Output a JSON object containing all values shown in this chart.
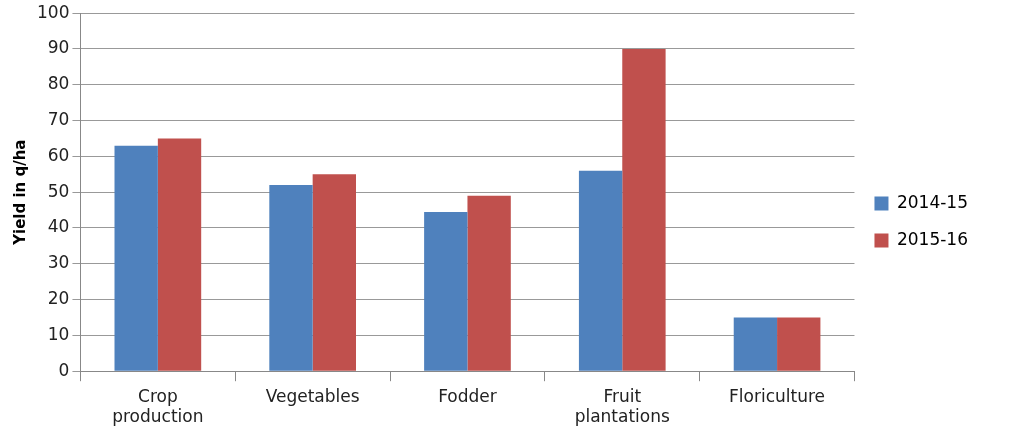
{
  "chart_data": {
    "type": "bar",
    "ylabel": "Yield in q/ha",
    "categories": [
      "Crop production",
      "Vegetables",
      "Fodder",
      "Fruit plantations",
      "Floriculture"
    ],
    "series": [
      {
        "name": "2014-15",
        "color": "#4f81bd",
        "values": [
          63,
          52,
          44.5,
          56,
          15
        ]
      },
      {
        "name": "2015-16",
        "color": "#c0504d",
        "values": [
          65,
          55,
          49,
          90,
          15
        ]
      }
    ],
    "ylim": [
      0,
      100
    ],
    "yticks": [
      0,
      10,
      20,
      30,
      40,
      50,
      60,
      70,
      80,
      90,
      100
    ],
    "grid": "y",
    "legend": "right"
  }
}
